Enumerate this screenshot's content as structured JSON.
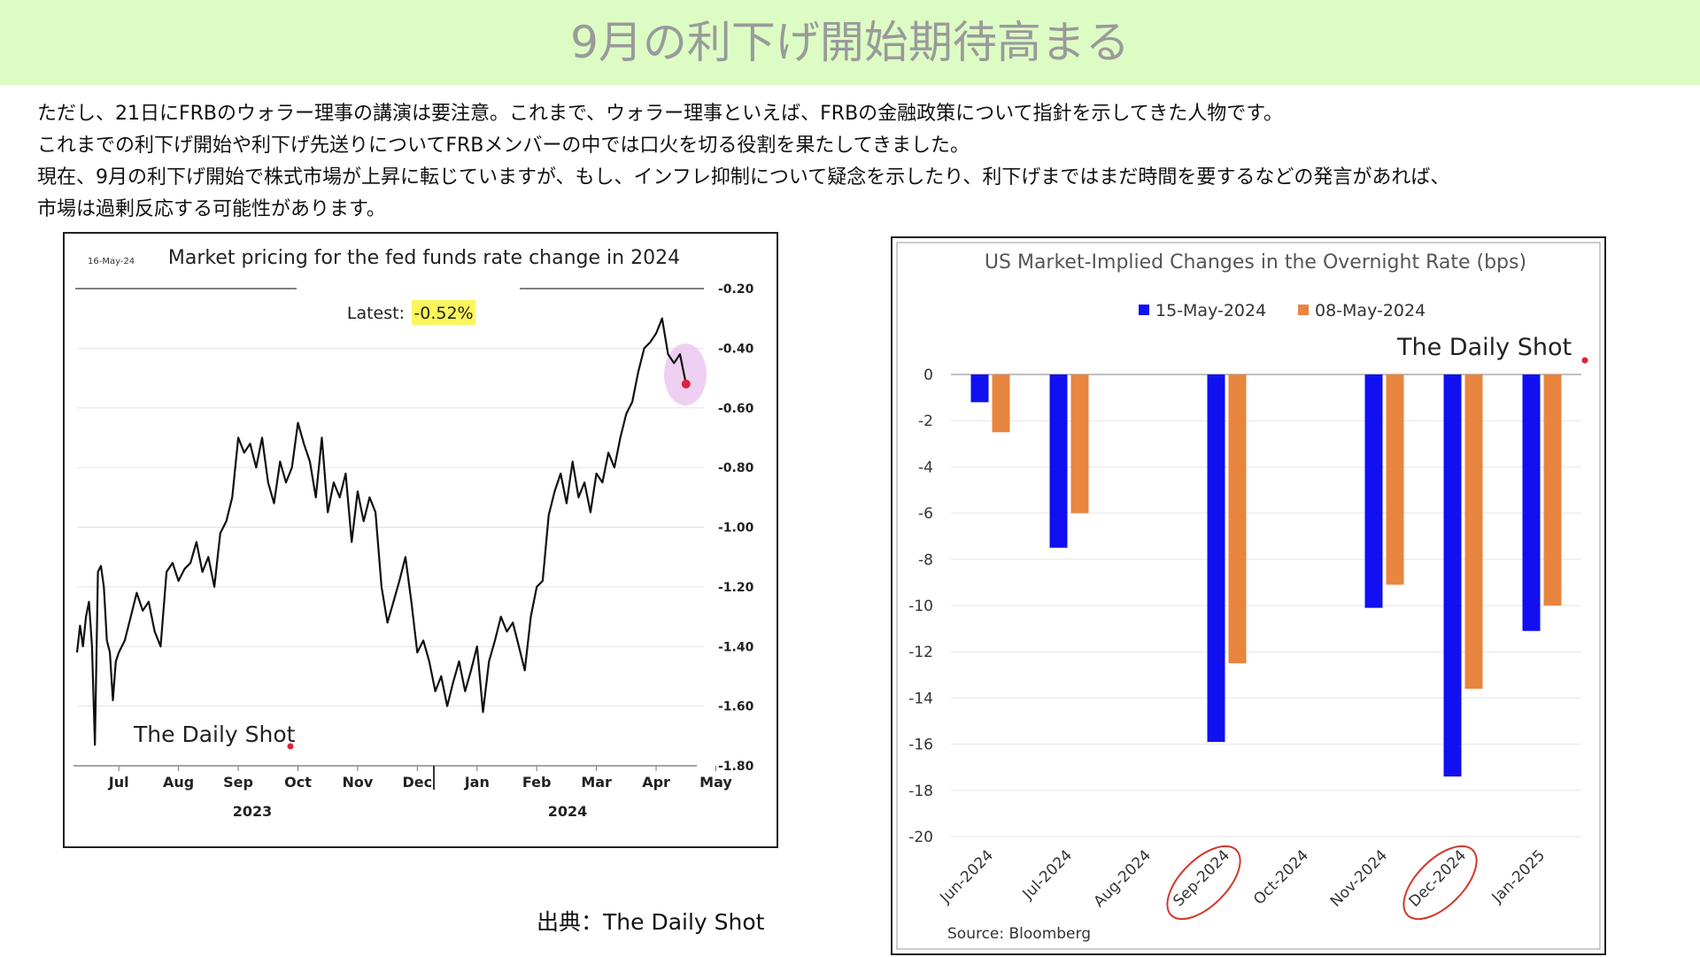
{
  "header": {
    "title": "9月の利下げ開始期待高まる",
    "background_color": "#dcfcc4",
    "title_color": "#9a9a9a"
  },
  "body": {
    "lines": [
      "ただし、21日にFRBのウォラー理事の講演は要注意。これまで、ウォラー理事といえば、FRBの金融政策について指針を示してきた人物です。",
      "これまでの利下げ開始や利下げ先送りについてFRBメンバーの中では口火を切る役割を果たしてきました。",
      "現在、9月の利下げ開始で株式市場が上昇に転じていますが、もし、インフレ抑制について疑念を示したり、利下げまではまだ時間を要するなどの発言があれば、",
      "市場は過剰反応する可能性があります。"
    ]
  },
  "source_credit": "出典：The Daily Shot",
  "chart_data": [
    {
      "type": "line",
      "date_stamp": "16-May-24",
      "title": "Market pricing for the fed funds rate change in 2024",
      "latest_label": "Latest:",
      "latest_value": "-0.52%",
      "watermark": "The Daily Shot",
      "x_tick_labels": [
        "Jul",
        "Aug",
        "Sep",
        "Oct",
        "Nov",
        "Dec",
        "Jan",
        "Feb",
        "Mar",
        "Apr",
        "May"
      ],
      "year_labels": [
        "2023",
        "2024"
      ],
      "y_tick_labels": [
        "-0.20",
        "-0.40",
        "-0.60",
        "-0.80",
        "-1.00",
        "-1.20",
        "-1.40",
        "-1.60",
        "-1.80"
      ],
      "ylim": [
        -1.8,
        -0.2
      ],
      "y_axis_side": "right",
      "grid": true,
      "line_color": "#111111",
      "highlight_marker_color": "#d8243b",
      "highlight_circle_color": "#ecc8f0",
      "latest_highlight_color": "#fbf65c",
      "series": [
        {
          "x": [
            6.3,
            6.35,
            6.4,
            6.45,
            6.5,
            6.55,
            6.6,
            6.65,
            6.7,
            6.75,
            6.8,
            6.85,
            6.9,
            6.95,
            7.0,
            7.1,
            7.2,
            7.3,
            7.4,
            7.5,
            7.6,
            7.7,
            7.8,
            7.9,
            8.0,
            8.1,
            8.2,
            8.3,
            8.4,
            8.5,
            8.6,
            8.7,
            8.8,
            8.9,
            9.0,
            9.1,
            9.2,
            9.3,
            9.4,
            9.5,
            9.6,
            9.7,
            9.8,
            9.9,
            10.0,
            10.1,
            10.2,
            10.3,
            10.4,
            10.5,
            10.6,
            10.7,
            10.8,
            10.9,
            11.0,
            11.1,
            11.2,
            11.3,
            11.4,
            11.5,
            11.6,
            11.7,
            11.8,
            11.9,
            12.0,
            12.1,
            12.2,
            12.3,
            12.4,
            12.5,
            12.6,
            12.7,
            12.8,
            12.9,
            13.0,
            13.1,
            13.2,
            13.3,
            13.4,
            13.5,
            13.6,
            13.7,
            13.8,
            13.9,
            14.0,
            14.1,
            14.2,
            14.3,
            14.4,
            14.5,
            14.6,
            14.7,
            14.8,
            14.9,
            15.0,
            15.1,
            15.2,
            15.3,
            15.4,
            15.5,
            15.6,
            15.7,
            15.8,
            15.9,
            16.0,
            16.1,
            16.2,
            16.3,
            16.4,
            16.5
          ],
          "y": [
            -1.42,
            -1.33,
            -1.4,
            -1.3,
            -1.25,
            -1.4,
            -1.73,
            -1.15,
            -1.13,
            -1.2,
            -1.38,
            -1.42,
            -1.58,
            -1.45,
            -1.42,
            -1.38,
            -1.3,
            -1.22,
            -1.28,
            -1.25,
            -1.35,
            -1.4,
            -1.15,
            -1.12,
            -1.18,
            -1.14,
            -1.12,
            -1.05,
            -1.15,
            -1.1,
            -1.2,
            -1.02,
            -0.98,
            -0.9,
            -0.7,
            -0.75,
            -0.72,
            -0.8,
            -0.7,
            -0.85,
            -0.92,
            -0.78,
            -0.85,
            -0.8,
            -0.65,
            -0.72,
            -0.78,
            -0.9,
            -0.7,
            -0.95,
            -0.85,
            -0.9,
            -0.82,
            -1.05,
            -0.88,
            -0.98,
            -0.9,
            -0.95,
            -1.2,
            -1.32,
            -1.25,
            -1.18,
            -1.1,
            -1.25,
            -1.42,
            -1.38,
            -1.45,
            -1.55,
            -1.5,
            -1.6,
            -1.52,
            -1.45,
            -1.55,
            -1.48,
            -1.4,
            -1.62,
            -1.45,
            -1.38,
            -1.3,
            -1.35,
            -1.32,
            -1.4,
            -1.48,
            -1.3,
            -1.2,
            -1.18,
            -0.96,
            -0.88,
            -0.82,
            -0.92,
            -0.78,
            -0.9,
            -0.85,
            -0.95,
            -0.82,
            -0.85,
            -0.75,
            -0.8,
            -0.7,
            -0.62,
            -0.58,
            -0.48,
            -0.4,
            -0.38,
            -0.35,
            -0.3,
            -0.42,
            -0.45,
            -0.42,
            -0.52
          ]
        }
      ]
    },
    {
      "type": "bar",
      "title": "US Market-Implied Changes in the Overnight Rate (bps)",
      "watermark": "The Daily Shot",
      "source": "Source: Bloomberg",
      "categories": [
        "Jun-2024",
        "Jul-2024",
        "Aug-2024",
        "Sep-2024",
        "Oct-2024",
        "Nov-2024",
        "Dec-2024",
        "Jan-2025"
      ],
      "circled_categories": [
        "Sep-2024",
        "Dec-2024"
      ],
      "y_tick_labels": [
        "0",
        "-2",
        "-4",
        "-6",
        "-8",
        "-10",
        "-12",
        "-14",
        "-16",
        "-18",
        "-20"
      ],
      "ylim": [
        -20,
        0
      ],
      "grid": true,
      "legend_position": "top",
      "series": [
        {
          "name": "15-May-2024",
          "color": "#1010f0",
          "values": [
            -1.2,
            -7.5,
            null,
            -15.9,
            null,
            -10.1,
            -17.4,
            -11.1
          ]
        },
        {
          "name": "08-May-2024",
          "color": "#e8853f",
          "values": [
            -2.5,
            -6.0,
            null,
            -12.5,
            null,
            -9.1,
            -13.6,
            -10.0
          ]
        }
      ]
    }
  ]
}
